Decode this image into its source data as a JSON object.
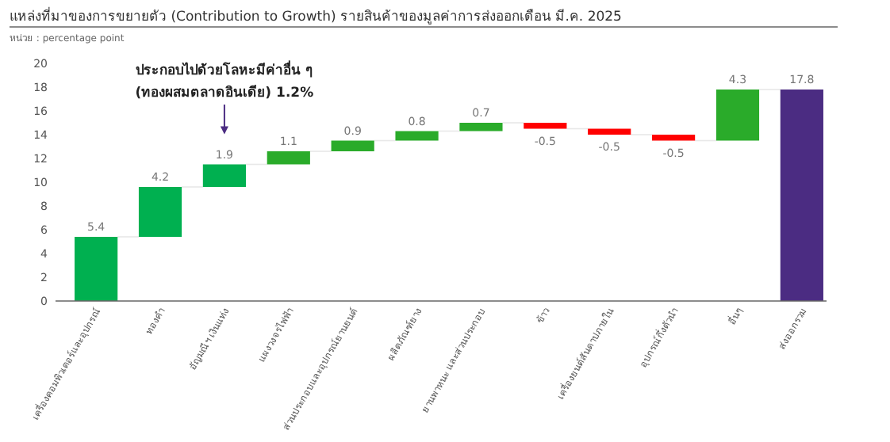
{
  "chart_data": {
    "type": "bar",
    "title": "แหล่งที่มาของการขยายตัว (Contribution to Growth) รายสินค้าของมูลค่าการส่งออกเดือน มี.ค. 2025",
    "subtitle": "หน่วย : percentage point",
    "categories": [
      "เครื่องคอมพิวเตอร์และอุปกรณ์",
      "ทองคำ",
      "อัญมณีฯ เงินแท่ง",
      "แผงวงจรไฟฟ้า",
      "ส่วนประกอบและอุปกรณ์ยานยนต์",
      "ผลิตภัณฑ์ยาง",
      "ยานพาหนะ และส่วนประกอบ",
      "ข้าว",
      "เครื่องยนต์สันดาปภายใน",
      "อุปกรณ์กึ่งตัวนำ",
      "อื่นๆ",
      "ส่งออกรวม"
    ],
    "values": [
      5.4,
      4.2,
      1.9,
      1.1,
      0.9,
      0.8,
      0.7,
      -0.5,
      -0.5,
      -0.5,
      4.3,
      17.8
    ],
    "base": [
      0,
      5.4,
      9.6,
      11.5,
      12.6,
      13.5,
      14.3,
      15.0,
      14.5,
      14.0,
      13.5,
      0
    ],
    "colors": [
      "#00b050",
      "#00b050",
      "#00b050",
      "#2aab2a",
      "#2aab2a",
      "#2aab2a",
      "#2aab2a",
      "#ff0000",
      "#ff0000",
      "#ff0000",
      "#2aab2a",
      "#4b2c82"
    ],
    "ylim": [
      0,
      20
    ],
    "yticks": [
      0,
      2,
      4,
      6,
      8,
      10,
      12,
      14,
      16,
      18,
      20
    ],
    "grid": false,
    "data_labels": true,
    "annotations": [
      "ประกอบไปด้วยโลหะมีค่าอื่น ๆ (ทองผสมตลาดอินเดีย) 1.2%"
    ]
  }
}
